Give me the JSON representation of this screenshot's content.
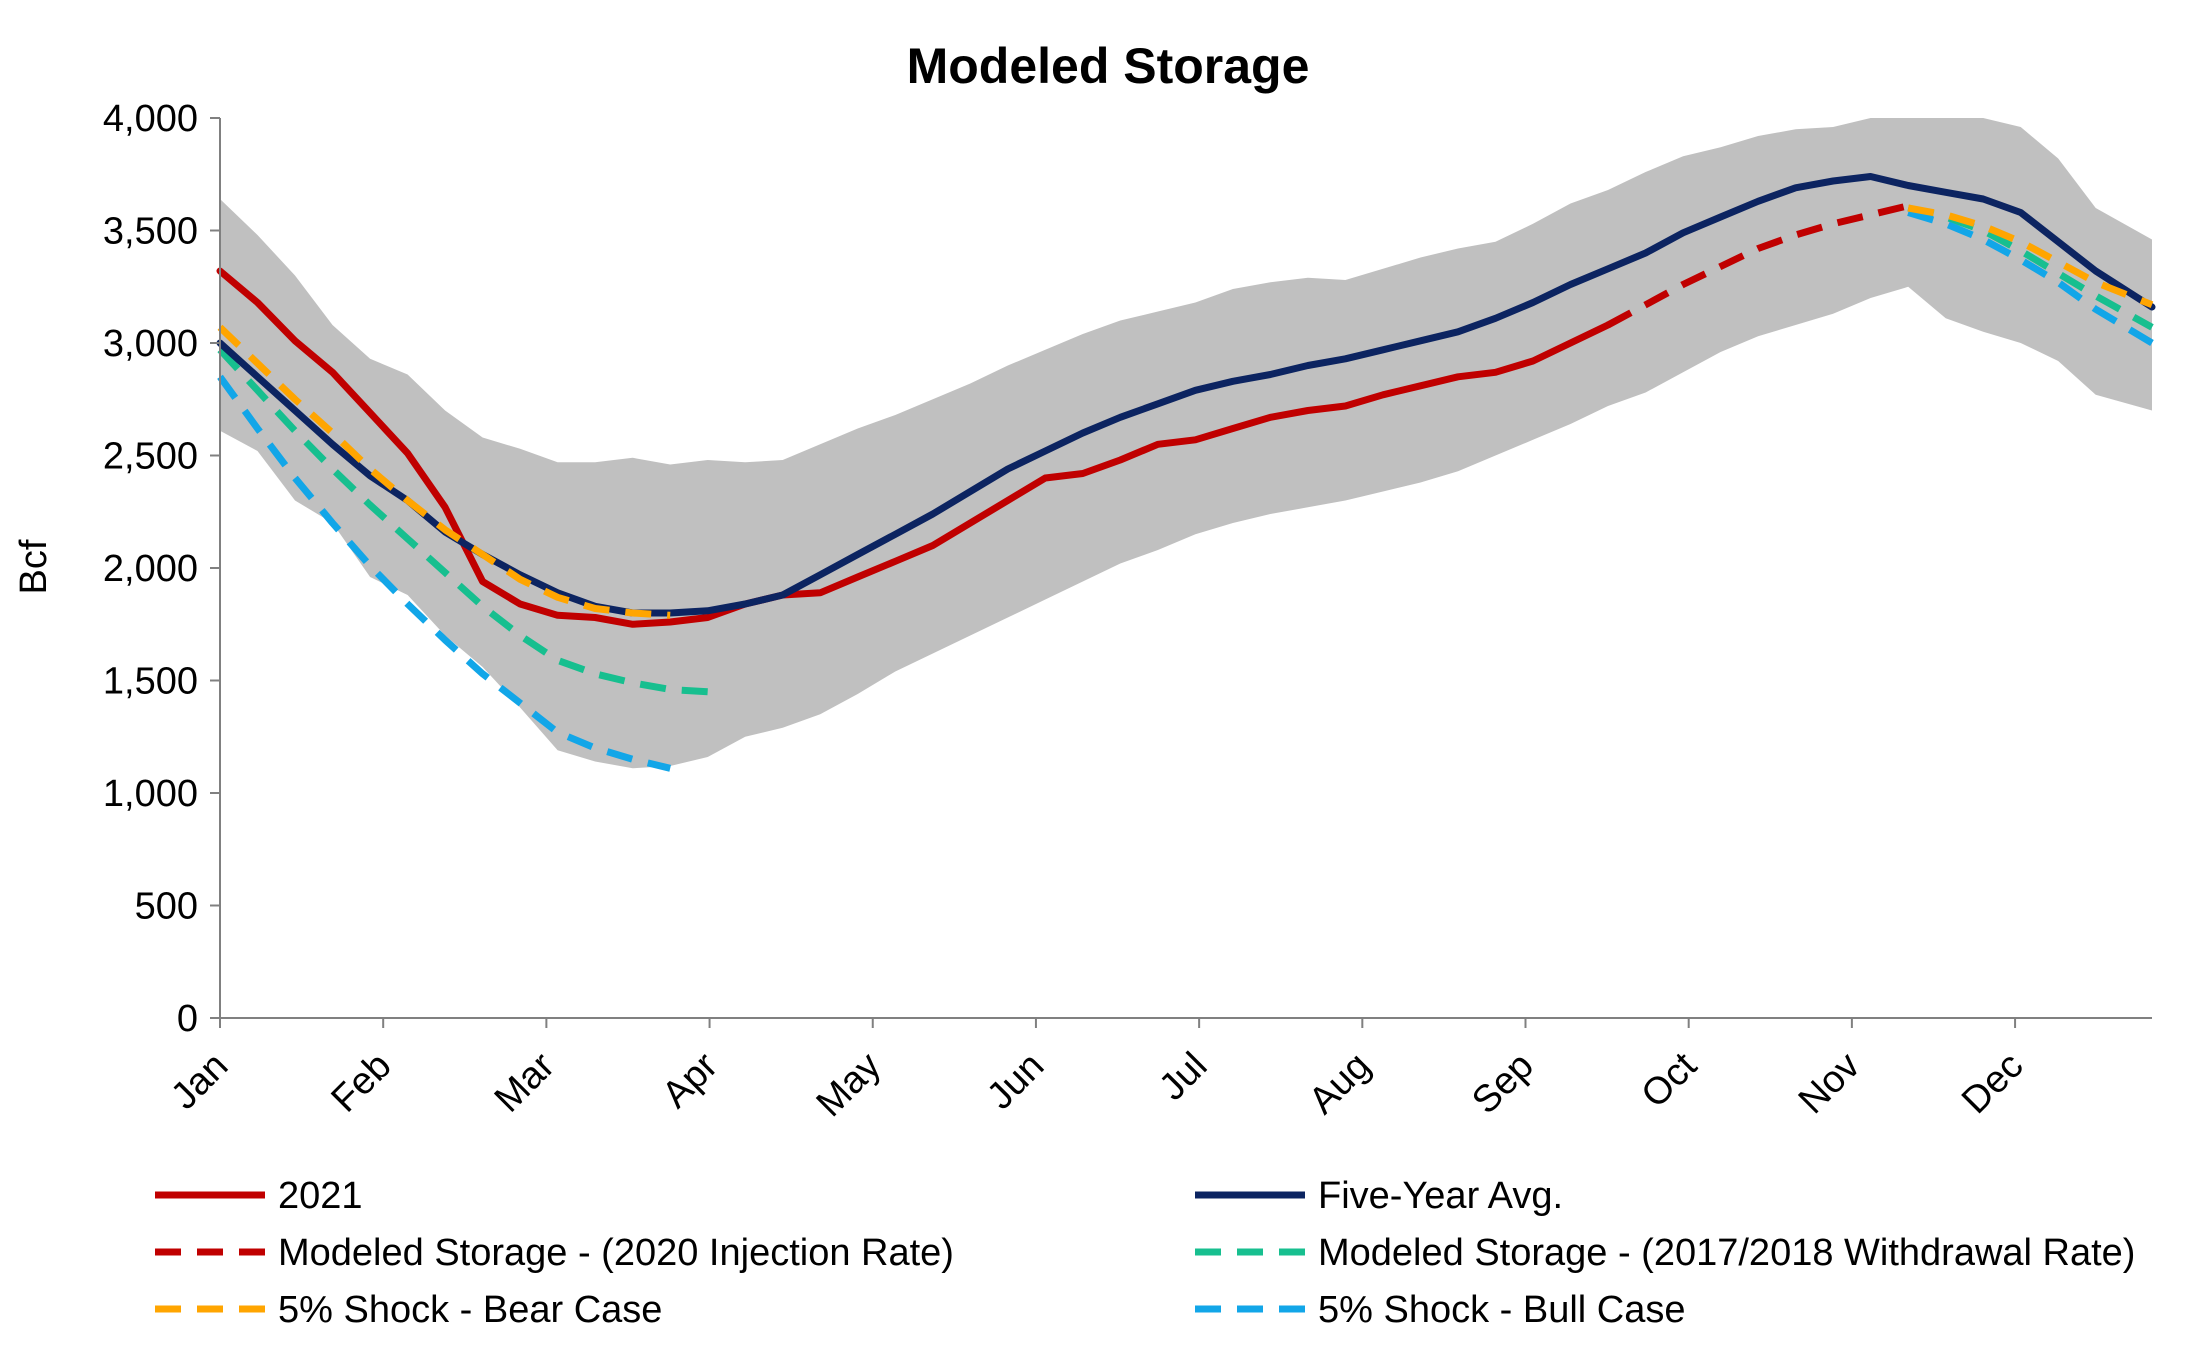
{
  "chart_data": {
    "type": "line",
    "title": "Modeled Storage",
    "xlabel": "",
    "ylabel": "Bcf",
    "ylim": [
      0,
      4000
    ],
    "yticks": [
      "0",
      "500",
      "1,000",
      "1,500",
      "2,000",
      "2,500",
      "3,000",
      "3,500",
      "4,000"
    ],
    "yticks_values": [
      0,
      500,
      1000,
      1500,
      2000,
      2500,
      3000,
      3500,
      4000
    ],
    "x_unit": "week of year",
    "xlim": [
      0,
      51.5
    ],
    "categories": [
      "Jan",
      "Feb",
      "Mar",
      "Apr",
      "May",
      "Jun",
      "Jul",
      "Aug",
      "Sep",
      "Oct",
      "Nov",
      "Dec"
    ],
    "category_week": [
      0,
      4.35,
      8.7,
      13.05,
      17.4,
      21.75,
      26.1,
      30.45,
      34.8,
      39.15,
      43.5,
      47.85
    ],
    "grid": false,
    "legend_position": "bottom",
    "range_band": {
      "color": "#c0c0c0",
      "x": [
        0,
        1,
        2,
        3,
        4,
        5,
        6,
        7,
        8,
        9,
        10,
        11,
        12,
        13,
        14,
        15,
        16,
        17,
        18,
        19,
        20,
        21,
        22,
        23,
        24,
        25,
        26,
        27,
        28,
        29,
        30,
        31,
        32,
        33,
        34,
        35,
        36,
        37,
        38,
        39,
        40,
        41,
        42,
        43,
        44,
        45,
        46,
        47,
        48,
        49,
        50,
        51.5
      ],
      "high": [
        3640,
        3480,
        3300,
        3080,
        2930,
        2860,
        2700,
        2580,
        2530,
        2470,
        2470,
        2490,
        2460,
        2480,
        2470,
        2480,
        2550,
        2620,
        2680,
        2750,
        2820,
        2900,
        2970,
        3040,
        3100,
        3140,
        3180,
        3240,
        3270,
        3290,
        3280,
        3330,
        3380,
        3420,
        3450,
        3530,
        3620,
        3680,
        3760,
        3830,
        3870,
        3920,
        3950,
        3960,
        4000,
        4000,
        4000,
        4000,
        3960,
        3820,
        3600,
        3460
      ],
      "low": [
        2610,
        2520,
        2300,
        2200,
        1960,
        1880,
        1700,
        1560,
        1380,
        1190,
        1140,
        1110,
        1120,
        1160,
        1250,
        1290,
        1350,
        1440,
        1540,
        1620,
        1700,
        1780,
        1860,
        1940,
        2020,
        2080,
        2150,
        2200,
        2240,
        2270,
        2300,
        2340,
        2380,
        2430,
        2500,
        2570,
        2640,
        2720,
        2780,
        2870,
        2960,
        3030,
        3080,
        3130,
        3200,
        3250,
        3110,
        3050,
        3000,
        2920,
        2770,
        2700
      ]
    },
    "series": [
      {
        "name": "2021",
        "color": "#c00000",
        "dash": "solid",
        "x": [
          0,
          1,
          2,
          3,
          4,
          5,
          6,
          7,
          8,
          9,
          10,
          11,
          12,
          13,
          14,
          15,
          16,
          17,
          18,
          19,
          20,
          21,
          22,
          23,
          24,
          25,
          26,
          27,
          28,
          29,
          30,
          31,
          32,
          33,
          34,
          35,
          36,
          37
        ],
        "values": [
          3320,
          3180,
          3010,
          2870,
          2690,
          2510,
          2270,
          1940,
          1840,
          1790,
          1780,
          1750,
          1760,
          1780,
          1840,
          1880,
          1890,
          1960,
          2030,
          2100,
          2200,
          2300,
          2400,
          2420,
          2480,
          2550,
          2570,
          2620,
          2670,
          2700,
          2720,
          2770,
          2810,
          2850,
          2870,
          2920,
          3000,
          3080
        ]
      },
      {
        "name": "Five-Year Avg.",
        "color": "#0c2461",
        "dash": "solid",
        "x": [
          0,
          1,
          2,
          3,
          4,
          5,
          6,
          7,
          8,
          9,
          10,
          11,
          12,
          13,
          14,
          15,
          16,
          17,
          18,
          19,
          20,
          21,
          22,
          23,
          24,
          25,
          26,
          27,
          28,
          29,
          30,
          31,
          32,
          33,
          34,
          35,
          36,
          37,
          38,
          39,
          40,
          41,
          42,
          43,
          44,
          45,
          46,
          47,
          48,
          49,
          50,
          51.5
        ],
        "values": [
          3000,
          2850,
          2700,
          2550,
          2410,
          2300,
          2160,
          2060,
          1970,
          1890,
          1830,
          1800,
          1800,
          1810,
          1840,
          1880,
          1970,
          2060,
          2150,
          2240,
          2340,
          2440,
          2520,
          2600,
          2670,
          2730,
          2790,
          2830,
          2860,
          2900,
          2930,
          2970,
          3010,
          3050,
          3110,
          3180,
          3260,
          3330,
          3400,
          3490,
          3560,
          3630,
          3690,
          3720,
          3740,
          3700,
          3670,
          3640,
          3580,
          3450,
          3320,
          3160
        ]
      },
      {
        "name": "Modeled Storage - (2020 Injection Rate)",
        "color": "#c00000",
        "dash": "dashed",
        "x": [
          37,
          38,
          39,
          40,
          41,
          42,
          43,
          44,
          45
        ],
        "values": [
          3080,
          3170,
          3260,
          3340,
          3420,
          3480,
          3530,
          3570,
          3610
        ]
      },
      {
        "name": "Modeled Storage - (2017/2018 Withdrawal Rate)",
        "color": "#17bf8f",
        "dash": "dashed",
        "x": [
          0,
          1,
          2,
          3,
          4,
          5,
          6,
          7,
          8,
          9,
          10,
          11,
          12,
          13,
          45,
          46,
          47,
          48,
          49,
          50,
          51.5
        ],
        "values": [
          2970,
          2790,
          2610,
          2440,
          2280,
          2130,
          1980,
          1830,
          1700,
          1590,
          1530,
          1490,
          1460,
          1450,
          3600,
          3560,
          3500,
          3410,
          3310,
          3210,
          3070
        ]
      },
      {
        "name": "5% Shock - Bear Case",
        "color": "#ffa500",
        "dash": "dashed",
        "x": [
          0,
          1,
          2,
          3,
          4,
          5,
          6,
          7,
          8,
          9,
          10,
          11,
          12,
          45,
          46,
          47,
          48,
          49,
          50,
          51.5
        ],
        "values": [
          3070,
          2910,
          2750,
          2600,
          2440,
          2300,
          2170,
          2060,
          1950,
          1870,
          1820,
          1800,
          1790,
          3600,
          3570,
          3520,
          3450,
          3360,
          3270,
          3170
        ]
      },
      {
        "name": "5% Shock - Bull Case",
        "color": "#12a6e8",
        "dash": "dashed",
        "x": [
          0,
          1,
          2,
          3,
          4,
          5,
          6,
          7,
          8,
          9,
          10,
          11,
          12,
          45,
          46,
          47,
          48,
          49,
          50,
          51.5
        ],
        "values": [
          2850,
          2620,
          2400,
          2200,
          2010,
          1840,
          1680,
          1530,
          1400,
          1270,
          1200,
          1150,
          1110,
          3580,
          3530,
          3460,
          3370,
          3270,
          3150,
          3000
        ]
      }
    ]
  }
}
